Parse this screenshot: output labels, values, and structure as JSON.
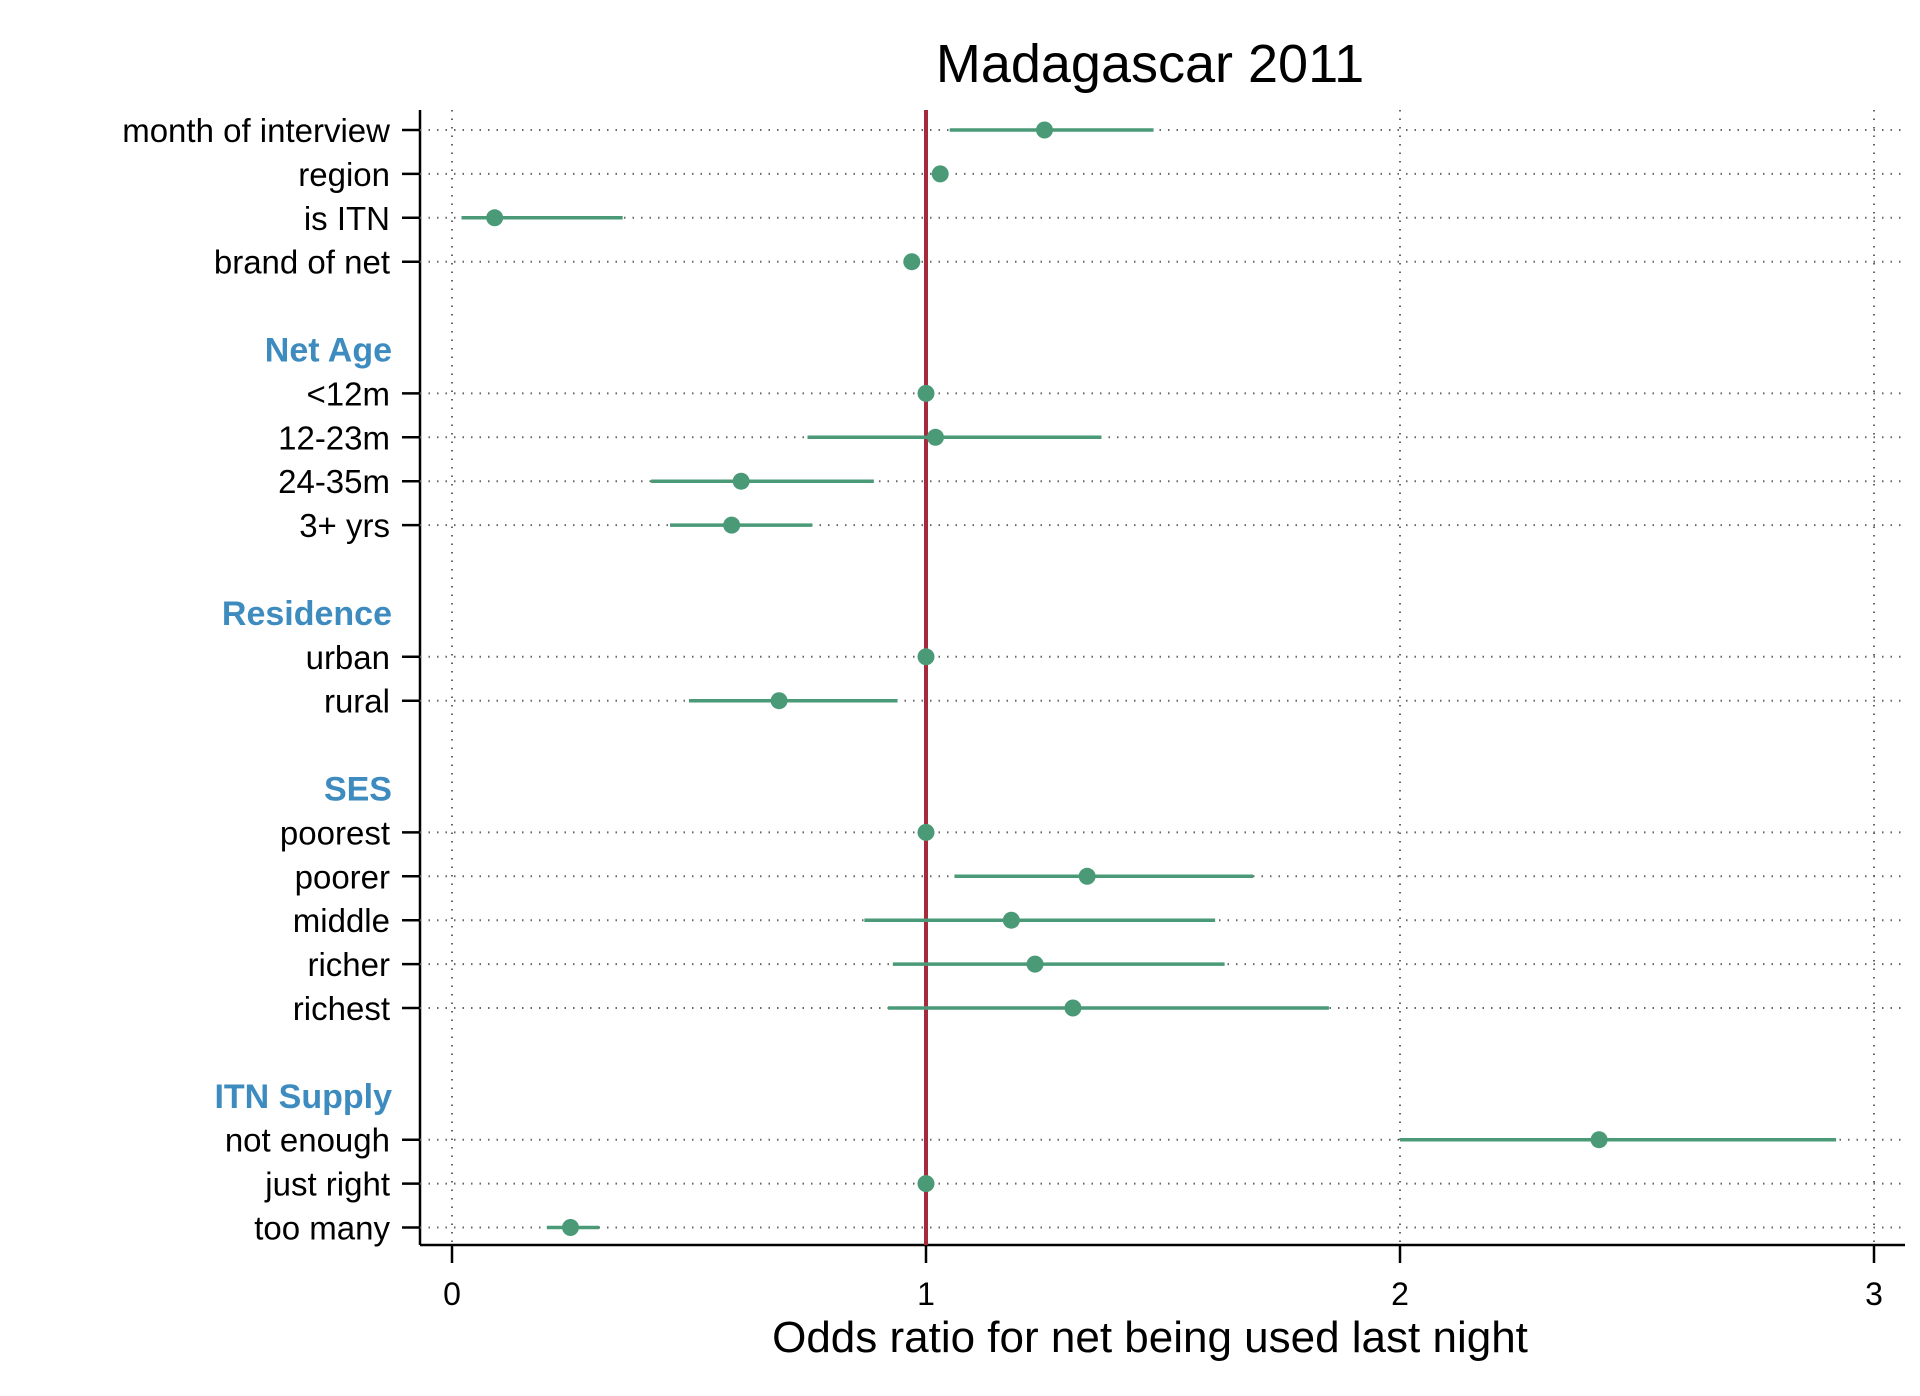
{
  "colors": {
    "point": "#4a9a78",
    "ci": "#4a9a78",
    "reference_line": "#a42a3c",
    "group_label": "#3d8bbf",
    "grid": "#666666",
    "axis": "#000000"
  },
  "chart_data": {
    "type": "forest",
    "title": "Madagascar 2011",
    "xlabel": "Odds ratio for net being used last night",
    "xlim": [
      -0.03,
      3.05
    ],
    "xticks": [
      0,
      1,
      2,
      3
    ],
    "xtick_labels": [
      "0",
      "1",
      "2",
      "3"
    ],
    "reference_line": 1,
    "grid": true,
    "rows": [
      {
        "kind": "item",
        "label": "month of interview",
        "estimate": 1.25,
        "lower": 1.05,
        "upper": 1.48
      },
      {
        "kind": "item",
        "label": "region",
        "estimate": 1.03,
        "lower": null,
        "upper": null
      },
      {
        "kind": "item",
        "label": "is ITN",
        "estimate": 0.09,
        "lower": 0.02,
        "upper": 0.36
      },
      {
        "kind": "item",
        "label": "brand of net",
        "estimate": 0.97,
        "lower": null,
        "upper": null
      },
      {
        "kind": "spacer"
      },
      {
        "kind": "group",
        "label": "Net Age"
      },
      {
        "kind": "item",
        "label": "<12m",
        "estimate": 1.0,
        "lower": null,
        "upper": null
      },
      {
        "kind": "item",
        "label": "12-23m",
        "estimate": 1.02,
        "lower": 0.75,
        "upper": 1.37
      },
      {
        "kind": "item",
        "label": "24-35m",
        "estimate": 0.61,
        "lower": 0.42,
        "upper": 0.89
      },
      {
        "kind": "item",
        "label": "3+ yrs",
        "estimate": 0.59,
        "lower": 0.46,
        "upper": 0.76
      },
      {
        "kind": "spacer"
      },
      {
        "kind": "group",
        "label": "Residence"
      },
      {
        "kind": "item",
        "label": "urban",
        "estimate": 1.0,
        "lower": null,
        "upper": null
      },
      {
        "kind": "item",
        "label": "rural",
        "estimate": 0.69,
        "lower": 0.5,
        "upper": 0.94
      },
      {
        "kind": "spacer"
      },
      {
        "kind": "group",
        "label": "SES"
      },
      {
        "kind": "item",
        "label": "poorest",
        "estimate": 1.0,
        "lower": null,
        "upper": null
      },
      {
        "kind": "item",
        "label": "poorer",
        "estimate": 1.34,
        "lower": 1.06,
        "upper": 1.69
      },
      {
        "kind": "item",
        "label": "middle",
        "estimate": 1.18,
        "lower": 0.87,
        "upper": 1.61
      },
      {
        "kind": "item",
        "label": "richer",
        "estimate": 1.23,
        "lower": 0.93,
        "upper": 1.63
      },
      {
        "kind": "item",
        "label": "richest",
        "estimate": 1.31,
        "lower": 0.92,
        "upper": 1.85
      },
      {
        "kind": "spacer"
      },
      {
        "kind": "group",
        "label": "ITN Supply"
      },
      {
        "kind": "item",
        "label": "not enough",
        "estimate": 2.42,
        "lower": 2.0,
        "upper": 2.92
      },
      {
        "kind": "item",
        "label": "just right",
        "estimate": 1.0,
        "lower": null,
        "upper": null
      },
      {
        "kind": "item",
        "label": "too many",
        "estimate": 0.25,
        "lower": 0.2,
        "upper": 0.31
      }
    ]
  }
}
